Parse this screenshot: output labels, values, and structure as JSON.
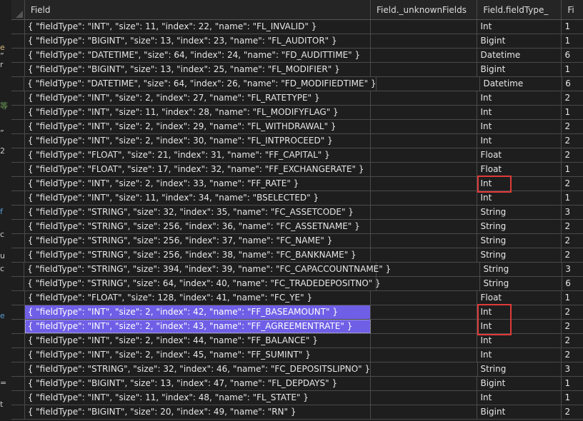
{
  "columns": [
    "Field",
    "Field._unknownFields",
    "Field.fieldType_",
    "Fi"
  ],
  "rows": [
    {
      "field": "{ \"fieldType\": \"INT\", \"size\": 11, \"index\": 22, \"name\": \"FL_INVALID\" }",
      "unknown": "",
      "type": "Int",
      "size": "1"
    },
    {
      "field": "{ \"fieldType\": \"BIGINT\", \"size\": 13, \"index\": 23, \"name\": \"FL_AUDITOR\" }",
      "unknown": "",
      "type": "Bigint",
      "size": "1"
    },
    {
      "field": "{ \"fieldType\": \"DATETIME\", \"size\": 64, \"index\": 24, \"name\": \"FD_AUDITTIME\" }",
      "unknown": "",
      "type": "Datetime",
      "size": "6"
    },
    {
      "field": "{ \"fieldType\": \"BIGINT\", \"size\": 13, \"index\": 25, \"name\": \"FL_MODIFIER\" }",
      "unknown": "",
      "type": "Bigint",
      "size": "1"
    },
    {
      "field": "{ \"fieldType\": \"DATETIME\", \"size\": 64, \"index\": 26, \"name\": \"FD_MODIFIEDTIME\" }",
      "unknown": "",
      "type": "Datetime",
      "size": "6"
    },
    {
      "field": "{ \"fieldType\": \"INT\", \"size\": 2, \"index\": 27, \"name\": \"FL_RATETYPE\" }",
      "unknown": "",
      "type": "Int",
      "size": "2"
    },
    {
      "field": "{ \"fieldType\": \"INT\", \"size\": 11, \"index\": 28, \"name\": \"FL_MODIFYFLAG\" }",
      "unknown": "",
      "type": "Int",
      "size": "1"
    },
    {
      "field": "{ \"fieldType\": \"INT\", \"size\": 2, \"index\": 29, \"name\": \"FL_WITHDRAWAL\" }",
      "unknown": "",
      "type": "Int",
      "size": "2"
    },
    {
      "field": "{ \"fieldType\": \"INT\", \"size\": 2, \"index\": 30, \"name\": \"FL_INTPROCEED\" }",
      "unknown": "",
      "type": "Int",
      "size": "2"
    },
    {
      "field": "{ \"fieldType\": \"FLOAT\", \"size\": 21, \"index\": 31, \"name\": \"FF_CAPITAL\" }",
      "unknown": "",
      "type": "Float",
      "size": "2"
    },
    {
      "field": "{ \"fieldType\": \"FLOAT\", \"size\": 17, \"index\": 32, \"name\": \"FF_EXCHANGERATE\" }",
      "unknown": "",
      "type": "Float",
      "size": "1"
    },
    {
      "field": "{ \"fieldType\": \"INT\", \"size\": 2, \"index\": 33, \"name\": \"FF_RATE\" }",
      "unknown": "",
      "type": "Int",
      "size": "2"
    },
    {
      "field": "{ \"fieldType\": \"INT\", \"size\": 11, \"index\": 34, \"name\": \"BSELECTED\" }",
      "unknown": "",
      "type": "Int",
      "size": "1"
    },
    {
      "field": "{ \"fieldType\": \"STRING\", \"size\": 32, \"index\": 35, \"name\": \"FC_ASSETCODE\" }",
      "unknown": "",
      "type": "String",
      "size": "3"
    },
    {
      "field": "{ \"fieldType\": \"STRING\", \"size\": 256, \"index\": 36, \"name\": \"FC_ASSETNAME\" }",
      "unknown": "",
      "type": "String",
      "size": "2"
    },
    {
      "field": "{ \"fieldType\": \"STRING\", \"size\": 256, \"index\": 37, \"name\": \"FC_NAME\" }",
      "unknown": "",
      "type": "String",
      "size": "2"
    },
    {
      "field": "{ \"fieldType\": \"STRING\", \"size\": 256, \"index\": 38, \"name\": \"FC_BANKNAME\" }",
      "unknown": "",
      "type": "String",
      "size": "2"
    },
    {
      "field": "{ \"fieldType\": \"STRING\", \"size\": 394, \"index\": 39, \"name\": \"FC_CAPACCOUNTNAME\" }",
      "unknown": "",
      "type": "String",
      "size": "3"
    },
    {
      "field": "{ \"fieldType\": \"STRING\", \"size\": 64, \"index\": 40, \"name\": \"FC_TRADEDEPOSITNO\" }",
      "unknown": "",
      "type": "String",
      "size": "6"
    },
    {
      "field": "{ \"fieldType\": \"FLOAT\", \"size\": 128, \"index\": 41, \"name\": \"FC_YE\" }",
      "unknown": "",
      "type": "Float",
      "size": "1"
    },
    {
      "field": "{ \"fieldType\": \"INT\", \"size\": 2, \"index\": 42, \"name\": \"FF_BASEAMOUNT\" }",
      "unknown": "",
      "type": "Int",
      "size": "2",
      "selected": true
    },
    {
      "field": "{ \"fieldType\": \"INT\", \"size\": 2, \"index\": 43, \"name\": \"FF_AGREEMENTRATE\" }",
      "unknown": "",
      "type": "Int",
      "size": "2",
      "selected": true,
      "focused": true
    },
    {
      "field": "{ \"fieldType\": \"INT\", \"size\": 2, \"index\": 44, \"name\": \"FF_BALANCE\" }",
      "unknown": "",
      "type": "Int",
      "size": "2"
    },
    {
      "field": "{ \"fieldType\": \"INT\", \"size\": 2, \"index\": 45, \"name\": \"FF_SUMINT\" }",
      "unknown": "",
      "type": "Int",
      "size": "2"
    },
    {
      "field": "{ \"fieldType\": \"STRING\", \"size\": 32, \"index\": 46, \"name\": \"FC_DEPOSITSLIPNO\" }",
      "unknown": "",
      "type": "String",
      "size": "3"
    },
    {
      "field": "{ \"fieldType\": \"BIGINT\", \"size\": 13, \"index\": 47, \"name\": \"FL_DEPDAYS\" }",
      "unknown": "",
      "type": "Bigint",
      "size": "1"
    },
    {
      "field": "{ \"fieldType\": \"INT\", \"size\": 11, \"index\": 48, \"name\": \"FL_STATE\" }",
      "unknown": "",
      "type": "Int",
      "size": "1"
    },
    {
      "field": "{ \"fieldType\": \"BIGINT\", \"size\": 20, \"index\": 49, \"name\": \"RN\" }",
      "unknown": "",
      "type": "Bigint",
      "size": "2"
    }
  ],
  "highlight_boxes": [
    {
      "rows": [
        11,
        11
      ]
    },
    {
      "rows": [
        20,
        21
      ]
    }
  ],
  "colors": {
    "selection": "#6f5fe6",
    "highlight_box": "#e03a3a",
    "background": "#1e1e1e"
  }
}
